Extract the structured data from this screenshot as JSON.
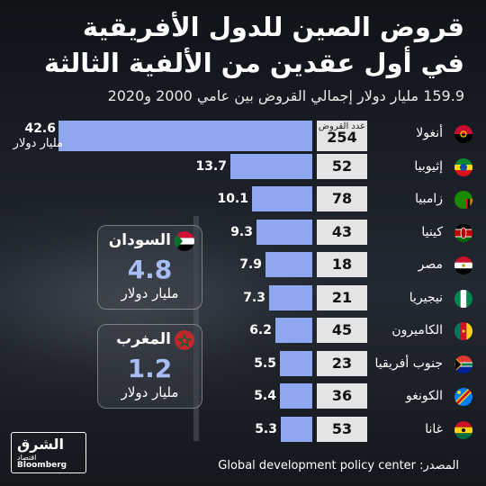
{
  "title_line1": "قروض الصين للدول الأفريقية",
  "title_line2": "في أول عقدين من الألفية الثالثة",
  "subtitle": "159.9 مليار دولار إجمالي القروض بين عامي 2000 و2020",
  "count_header": "عدد القروض",
  "unit_label": "مليار دولار",
  "source": "المصدر: Global development policy center",
  "logo": {
    "name": "الشرق",
    "sub": "اقتصاد",
    "brand": "Bloomberg"
  },
  "callouts": [
    {
      "name": "السودان",
      "amount": "4.8",
      "unit": "مليار دولار",
      "flag": "sudan-flag-icon"
    },
    {
      "name": "المغرب",
      "amount": "1.2",
      "unit": "مليار دولار",
      "flag": "morocco-flag-icon"
    }
  ],
  "chart_data": {
    "type": "bar",
    "orientation": "horizontal",
    "title": "قروض الصين للدول الأفريقية في أول عقدين من الألفية الثالثة",
    "xlabel": "",
    "ylabel": "",
    "xlim": [
      0,
      42.6
    ],
    "categories": [
      "أنغولا",
      "إثيوبيا",
      "زامبيا",
      "كينيا",
      "مصر",
      "نيجيريا",
      "الكاميرون",
      "جنوب أفريقيا",
      "الكونغو",
      "غانا"
    ],
    "values": [
      42.6,
      13.7,
      10.1,
      9.3,
      7.9,
      7.3,
      6.2,
      5.5,
      5.4,
      5.3
    ],
    "value_labels": [
      "42.6",
      "13.7",
      "10.1",
      "9.3",
      "7.9",
      "7.3",
      "6.2",
      "5.5",
      "5.4",
      "5.3"
    ],
    "loan_counts": [
      "254",
      "52",
      "78",
      "43",
      "18",
      "21",
      "45",
      "23",
      "36",
      "53"
    ],
    "flags": [
      "angola-flag-icon",
      "ethiopia-flag-icon",
      "zambia-flag-icon",
      "kenya-flag-icon",
      "egypt-flag-icon",
      "nigeria-flag-icon",
      "cameroon-flag-icon",
      "south-africa-flag-icon",
      "congo-flag-icon",
      "ghana-flag-icon"
    ],
    "bar_color": "#8fa7ee"
  }
}
